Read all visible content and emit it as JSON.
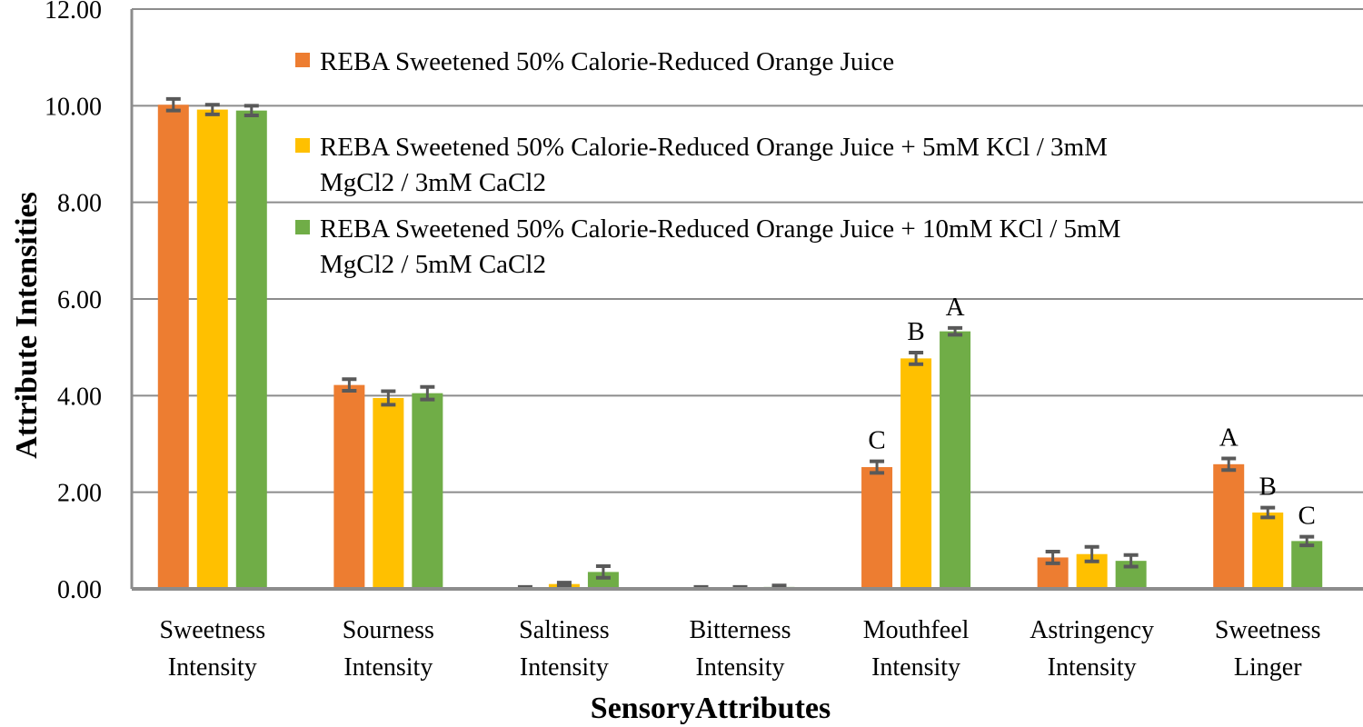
{
  "chart_data": {
    "type": "bar",
    "title": "",
    "xlabel": "SensoryAttributes",
    "ylabel": "Attribute Intensities",
    "ylim": [
      0,
      12
    ],
    "yticks": [
      "0.00",
      "2.00",
      "4.00",
      "6.00",
      "8.00",
      "10.00",
      "12.00"
    ],
    "grid": true,
    "legend_position": "top-right",
    "categories": [
      [
        "Sweetness",
        "Intensity"
      ],
      [
        "Sourness",
        "Intensity"
      ],
      [
        "Saltiness",
        "Intensity"
      ],
      [
        "Bitterness",
        "Intensity"
      ],
      [
        "Mouthfeel",
        "Intensity"
      ],
      [
        "Astringency",
        "Intensity"
      ],
      [
        "Sweetness",
        "Linger"
      ]
    ],
    "series": [
      {
        "name": "REBA Sweetened 50% Calorie-Reduced Orange Juice",
        "legend_lines": [
          "REBA Sweetened 50% Calorie-Reduced Orange Juice"
        ],
        "color": "#ED7D31",
        "values": [
          10.02,
          4.22,
          0.02,
          0.02,
          2.52,
          0.65,
          2.58
        ],
        "errors": [
          0.12,
          0.12,
          0.02,
          0.02,
          0.12,
          0.12,
          0.12
        ],
        "labels": [
          "",
          "",
          "",
          "",
          "C",
          "",
          "A"
        ]
      },
      {
        "name": "REBA Sweetened 50% Calorie-Reduced Orange Juice + 5mM KCl / 3mM MgCl2 / 3mM CaCl2",
        "legend_lines": [
          "REBA Sweetened 50% Calorie-Reduced Orange Juice + 5mM KCl / 3mM",
          "MgCl2 / 3mM CaCl2"
        ],
        "color": "#FFC000",
        "values": [
          9.92,
          3.95,
          0.1,
          0.02,
          4.77,
          0.72,
          1.58
        ],
        "errors": [
          0.1,
          0.14,
          0.03,
          0.02,
          0.12,
          0.15,
          0.1
        ],
        "labels": [
          "",
          "",
          "",
          "",
          "B",
          "",
          "B"
        ]
      },
      {
        "name": "REBA Sweetened 50% Calorie-Reduced Orange Juice + 10mM KCl / 5mM MgCl2 / 5mM CaCl2",
        "legend_lines": [
          "REBA Sweetened 50% Calorie-Reduced Orange Juice + 10mM KCl / 5mM",
          "MgCl2 / 5mM CaCl2"
        ],
        "color": "#70AD47",
        "values": [
          9.9,
          4.05,
          0.35,
          0.04,
          5.33,
          0.58,
          0.99
        ],
        "errors": [
          0.1,
          0.13,
          0.12,
          0.03,
          0.07,
          0.12,
          0.09
        ],
        "labels": [
          "",
          "",
          "",
          "",
          "A",
          "",
          "C"
        ]
      }
    ]
  }
}
